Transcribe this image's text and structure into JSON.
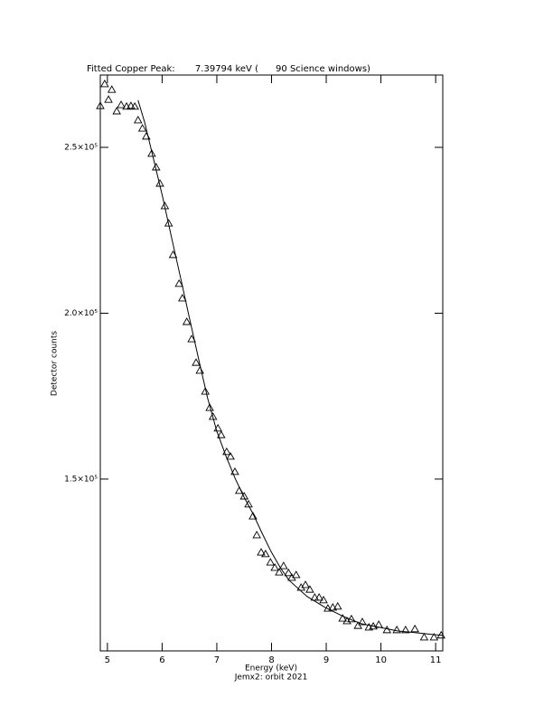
{
  "chart_data": {
    "type": "scatter",
    "title": "Fitted Copper Peak:       7.39794 keV (      90 Science windows)",
    "xlabel": "Energy (keV)",
    "ylabel": "Detector counts",
    "subtitle": "Jemx2: orbit 2021",
    "xlim": [
      4.87,
      11.13
    ],
    "ylim": [
      98200,
      271800
    ],
    "xticks": [
      5,
      6,
      7,
      8,
      9,
      10,
      11
    ],
    "yticks": [
      {
        "value": 150000,
        "label": "1.5×10⁵"
      },
      {
        "value": 200000,
        "label": "2.0×10⁵"
      },
      {
        "value": 250000,
        "label": "2.5×10⁵"
      }
    ],
    "series": [
      {
        "marker": "triangle",
        "color": "#000000",
        "x": [
          4.87,
          4.95,
          5.02,
          5.08,
          5.17,
          5.25,
          5.35,
          5.43,
          5.5,
          5.56,
          5.64,
          5.71,
          5.81,
          5.89,
          5.96,
          6.05,
          6.12,
          6.2,
          6.31,
          6.37,
          6.45,
          6.54,
          6.62,
          6.69,
          6.79,
          6.87,
          6.93,
          7.02,
          7.08,
          7.18,
          7.25,
          7.33,
          7.41,
          7.5,
          7.58,
          7.66,
          7.73,
          7.81,
          7.89,
          7.98,
          8.06,
          8.14,
          8.22,
          8.31,
          8.37,
          8.45,
          8.54,
          8.62,
          8.7,
          8.79,
          8.87,
          8.95,
          9.03,
          9.12,
          9.21,
          9.3,
          9.38,
          9.46,
          9.58,
          9.66,
          9.78,
          9.86,
          9.96,
          10.11,
          10.29,
          10.45,
          10.62,
          10.79,
          10.97,
          11.1
        ],
        "values": [
          262500,
          269100,
          264400,
          267400,
          260900,
          262800,
          262300,
          262500,
          262300,
          258200,
          255700,
          253300,
          248100,
          244000,
          239100,
          232300,
          227100,
          217600,
          208900,
          204500,
          197400,
          192200,
          185100,
          182700,
          176400,
          171500,
          168800,
          165300,
          163300,
          158200,
          156800,
          152200,
          146500,
          144800,
          142400,
          138800,
          133100,
          127900,
          127400,
          124900,
          123300,
          121900,
          123800,
          121700,
          120300,
          121100,
          117300,
          118100,
          116700,
          114300,
          114300,
          113500,
          111000,
          111300,
          111600,
          108000,
          107200,
          107800,
          105800,
          106900,
          105300,
          105600,
          106100,
          104500,
          104500,
          104500,
          104800,
          102300,
          102300,
          102900
        ]
      },
      {
        "marker": "line",
        "color": "#000000",
        "x": [
          5.56,
          5.68,
          5.84,
          6.01,
          6.17,
          6.34,
          6.5,
          6.67,
          6.83,
          7.0,
          7.17,
          7.34,
          7.5,
          7.66,
          7.83,
          7.99,
          8.16,
          8.32,
          8.65,
          8.98,
          9.31,
          9.64,
          9.98,
          10.31,
          10.64,
          10.97,
          11.13
        ],
        "values": [
          264200,
          257600,
          246700,
          235000,
          223000,
          210500,
          198500,
          186000,
          174500,
          164400,
          156800,
          150000,
          144500,
          139600,
          133600,
          128200,
          123300,
          119500,
          114600,
          111300,
          108600,
          106400,
          105300,
          104200,
          103700,
          103100,
          102900
        ]
      }
    ]
  }
}
